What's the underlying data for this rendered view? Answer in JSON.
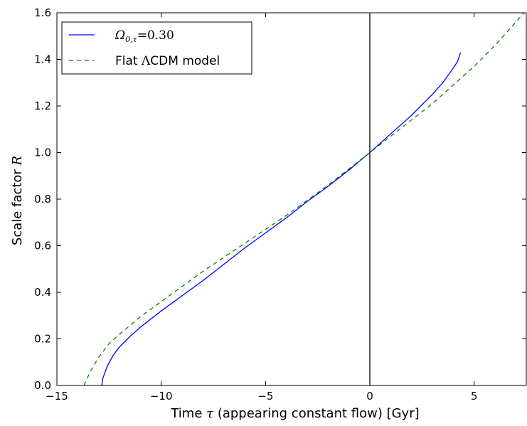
{
  "chart_data": {
    "type": "line",
    "xlabel_prefix": "Time ",
    "xlabel_symbol": "τ",
    "xlabel_suffix": " (appearing constant flow) [Gyr]",
    "ylabel_prefix": "Scale factor ",
    "ylabel_symbol": "R",
    "xlim": [
      -15,
      7.5
    ],
    "ylim": [
      0.0,
      1.6
    ],
    "xticks": [
      -15,
      -10,
      -5,
      0,
      5
    ],
    "xtick_labels": [
      "−15",
      "−10",
      "−5",
      "0",
      "5"
    ],
    "yticks": [
      0.0,
      0.2,
      0.4,
      0.6,
      0.8,
      1.0,
      1.2,
      1.4,
      1.6
    ],
    "ytick_labels": [
      "0.0",
      "0.2",
      "0.4",
      "0.6",
      "0.8",
      "1.0",
      "1.2",
      "1.4",
      "1.6"
    ],
    "grid": false,
    "legend_position": "top-left",
    "vertical_line_x": 0,
    "series": [
      {
        "name": "Ω0,τ=0.30",
        "legend_symbol": "Ω",
        "legend_subscript": "0,τ",
        "legend_value": "=0.30",
        "color": "#0000ff",
        "style": "solid",
        "x": [
          -12.85,
          -12.8,
          -12.6,
          -12.3,
          -12.0,
          -11.5,
          -11.0,
          -10.0,
          -9.0,
          -8.0,
          -7.0,
          -6.0,
          -5.0,
          -4.0,
          -3.0,
          -2.0,
          -1.0,
          0.0,
          1.0,
          2.0,
          3.0,
          3.5,
          3.9,
          4.2,
          4.35
        ],
        "y": [
          0.0,
          0.03,
          0.08,
          0.13,
          0.165,
          0.21,
          0.25,
          0.32,
          0.385,
          0.45,
          0.52,
          0.59,
          0.655,
          0.72,
          0.79,
          0.855,
          0.925,
          1.0,
          1.08,
          1.16,
          1.25,
          1.3,
          1.35,
          1.39,
          1.43
        ]
      },
      {
        "name": "Flat ΛCDM model",
        "legend_prefix": "Flat ",
        "legend_symbol": "Λ",
        "legend_suffix": "CDM model",
        "color": "#008000",
        "style": "dashed",
        "x": [
          -13.7,
          -13.6,
          -13.4,
          -13.0,
          -12.5,
          -12.0,
          -11.0,
          -10.0,
          -9.0,
          -8.0,
          -7.0,
          -6.0,
          -5.0,
          -4.0,
          -3.0,
          -2.0,
          -1.0,
          0.0,
          1.0,
          2.0,
          3.0,
          4.0,
          5.0,
          6.0,
          7.0,
          7.4
        ],
        "y": [
          0.0,
          0.02,
          0.06,
          0.12,
          0.18,
          0.22,
          0.295,
          0.36,
          0.425,
          0.49,
          0.55,
          0.61,
          0.67,
          0.73,
          0.795,
          0.86,
          0.93,
          1.0,
          1.07,
          1.14,
          1.21,
          1.29,
          1.37,
          1.46,
          1.56,
          1.6
        ]
      }
    ]
  }
}
